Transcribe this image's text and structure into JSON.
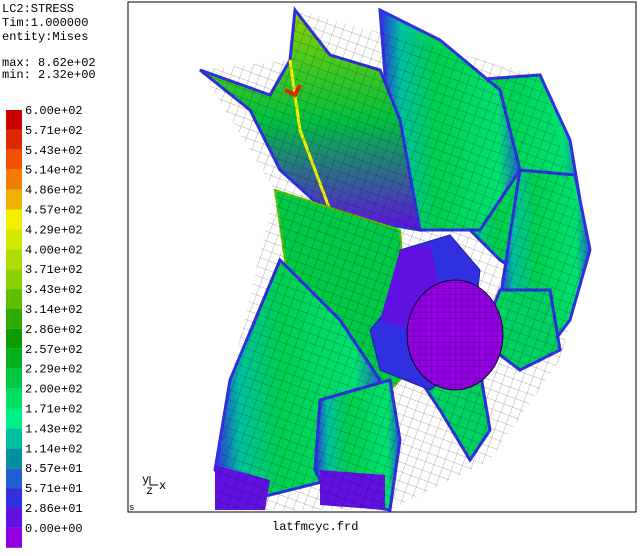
{
  "header": {
    "lines": [
      "LC2:STRESS",
      "Tim:1.000000",
      "entity:Mises"
    ],
    "max": "max: 8.62e+02",
    "min": "min: 2.32e+00"
  },
  "legend": [
    {
      "label": "6.00e+02",
      "color": "#c80000"
    },
    {
      "label": "5.71e+02",
      "color": "#e02800"
    },
    {
      "label": "5.43e+02",
      "color": "#f05000"
    },
    {
      "label": "5.14e+02",
      "color": "#f07c00"
    },
    {
      "label": "4.86e+02",
      "color": "#f0b000"
    },
    {
      "label": "4.57e+02",
      "color": "#f0f000"
    },
    {
      "label": "4.29e+02",
      "color": "#d0e800"
    },
    {
      "label": "4.00e+02",
      "color": "#b0dc00"
    },
    {
      "label": "3.71e+02",
      "color": "#8cd000"
    },
    {
      "label": "3.43e+02",
      "color": "#5cc000"
    },
    {
      "label": "3.14e+02",
      "color": "#2cac00"
    },
    {
      "label": "2.86e+02",
      "color": "#0c9c00"
    },
    {
      "label": "2.57e+02",
      "color": "#00b020"
    },
    {
      "label": "2.29e+02",
      "color": "#00c840"
    },
    {
      "label": "2.00e+02",
      "color": "#00e060"
    },
    {
      "label": "1.71e+02",
      "color": "#00f088"
    },
    {
      "label": "1.43e+02",
      "color": "#00c0a0"
    },
    {
      "label": "1.14e+02",
      "color": "#0090a0"
    },
    {
      "label": "8.57e+01",
      "color": "#2060d0"
    },
    {
      "label": "5.71e+01",
      "color": "#3030e0"
    },
    {
      "label": "2.86e+01",
      "color": "#6010e0"
    },
    {
      "label": "0.00e+00",
      "color": "#9000e0"
    }
  ],
  "triad": {
    "y": "y",
    "z": "z",
    "x": "x"
  },
  "status": "s",
  "filename": "latfmcyc.frd"
}
